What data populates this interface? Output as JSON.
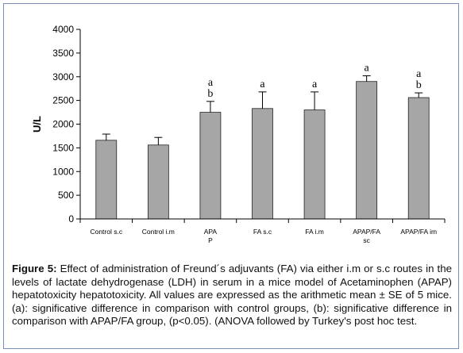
{
  "chart_data": {
    "type": "bar",
    "categories": [
      "Control s.c",
      "Control i.m",
      "APAP",
      "FA  s.c",
      "FA i.m",
      "APAP/FA sc",
      "APAP/FA im"
    ],
    "category_lines": [
      [
        "Control s.c"
      ],
      [
        "Control i.m"
      ],
      [
        "APA",
        "P"
      ],
      [
        "FA  s.c"
      ],
      [
        "FA i.m"
      ],
      [
        "APAP/FA",
        "sc"
      ],
      [
        "APAP/FA im"
      ]
    ],
    "values": [
      1660,
      1560,
      2250,
      2330,
      2300,
      2900,
      2560
    ],
    "errors": [
      130,
      160,
      230,
      350,
      380,
      120,
      100
    ],
    "significance": [
      [],
      [],
      [
        "a",
        "b"
      ],
      [
        "a"
      ],
      [
        "a"
      ],
      [
        "a"
      ],
      [
        "a",
        "b"
      ]
    ],
    "ylabel": "U/L",
    "ylim": [
      0,
      4000
    ],
    "yticks": [
      0,
      500,
      1000,
      1500,
      2000,
      2500,
      3000,
      3500,
      4000
    ],
    "grid": false,
    "bar_color": "#a6a6a6"
  },
  "caption": {
    "label": "Figure 5:",
    "text": " Effect of administration of Freund´s adjuvants (FA) via either i.m or s.c routes in the levels of lactate dehydrogenase (LDH) in serum in a mice model of Acetaminophen (APAP) hepatotoxicity hepatotoxicity. All values are expressed as the arithmetic mean ± SE of 5 mice. (a): significative difference in comparison with control groups, (b): significative difference in comparison with APAP/FA group, (p<0.05). (ANOVA followed by Turkey's post hoc test."
  }
}
